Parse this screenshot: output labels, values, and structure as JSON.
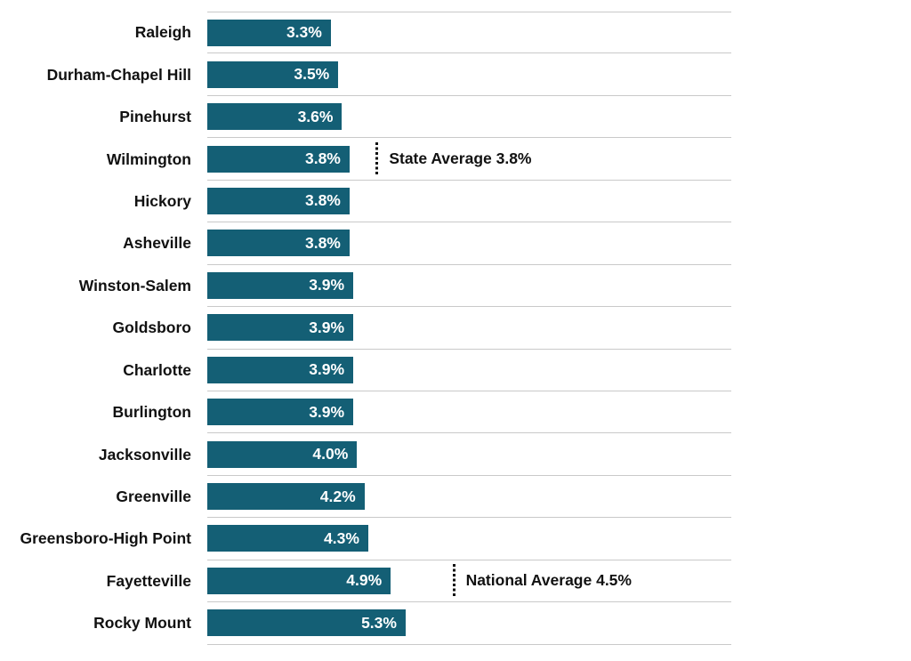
{
  "page": {
    "background": "#ffffff"
  },
  "chart_data": {
    "type": "bar",
    "orientation": "horizontal",
    "title": "",
    "xlabel": "",
    "ylabel": "",
    "categories": [
      "Raleigh",
      "Durham-Chapel Hill",
      "Pinehurst",
      "Wilmington",
      "Hickory",
      "Asheville",
      "Winston-Salem",
      "Goldsboro",
      "Charlotte",
      "Burlington",
      "Jacksonville",
      "Greenville",
      "Greensboro-High Point",
      "Fayetteville",
      "Rocky Mount"
    ],
    "values": [
      3.3,
      3.5,
      3.6,
      3.8,
      3.8,
      3.8,
      3.9,
      3.9,
      3.9,
      3.9,
      4.0,
      4.2,
      4.3,
      4.9,
      5.3
    ],
    "value_labels": [
      "3.3%",
      "3.5%",
      "3.6%",
      "3.8%",
      "3.8%",
      "3.8%",
      "3.9%",
      "3.9%",
      "3.9%",
      "3.9%",
      "4.0%",
      "4.2%",
      "4.3%",
      "4.9%",
      "5.3%"
    ],
    "xlim": [
      0,
      14
    ],
    "grid": "horizontal row separator lines only",
    "legend": "none",
    "bar_color": "#145F75",
    "value_label_color": "#FFFFFF",
    "gridline_color": "#C9C9C9",
    "text_color": "#111111",
    "annotations": [
      {
        "label": "State Average 3.8%",
        "value": 3.8,
        "attached_category": "Wilmington",
        "row_index": 3,
        "line_x": 4.5
      },
      {
        "label": "National Average 4.5%",
        "value": 4.5,
        "attached_category": "Fayetteville",
        "row_index": 13,
        "line_x": 6.55
      }
    ]
  }
}
